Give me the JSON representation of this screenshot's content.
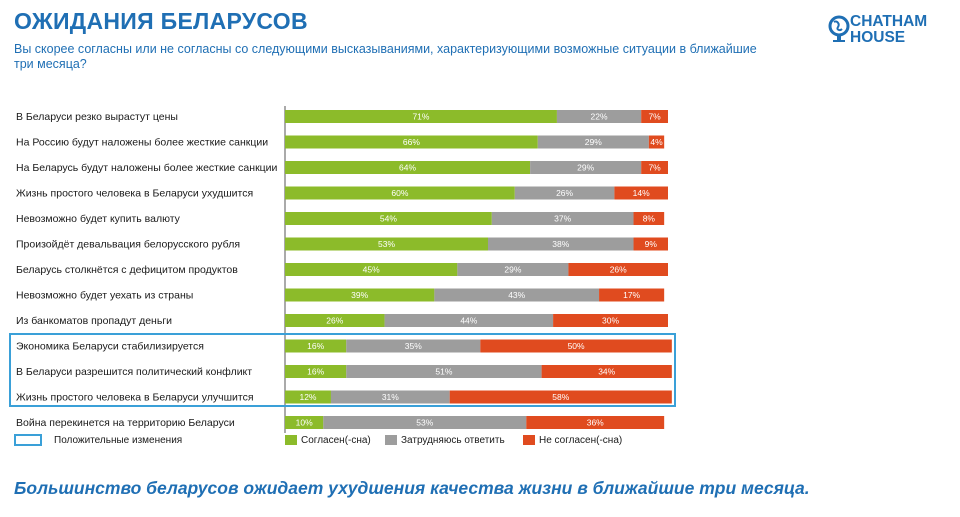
{
  "header": {
    "title": "ОЖИДАНИЯ БЕЛАРУСОВ",
    "subtitle": "Вы скорее согласны или не согласны со следующими высказываниями, характеризующими возможные ситуации в ближайшие три месяца?"
  },
  "logo": {
    "line1": "CHATHAM",
    "line2": "HOUSE"
  },
  "colors": {
    "agree": "#8cbb2a",
    "unsure": "#9d9d9d",
    "disagree": "#e04b1f",
    "accent": "#1f6fb4",
    "highlight": "#3aa0d8"
  },
  "legend": {
    "highlight_label": "Положительные изменения",
    "agree": "Согласен(-сна)",
    "unsure": "Затрудняюсь ответить",
    "disagree": "Не согласен(-сна)"
  },
  "chart_data": {
    "type": "bar",
    "orientation": "horizontal-stacked-100",
    "categories": [
      "В Беларуси резко вырастут цены",
      "На Россию будут наложены более жесткие санкции",
      "На Беларусь будут наложены более жесткие санкции",
      "Жизнь простого человека в Беларуси ухудшится",
      "Невозможно будет купить валюту",
      "Произойдёт девальвация белорусского рубля",
      "Беларусь столкнётся с дефицитом продуктов",
      "Невозможно будет уехать из страны",
      "Из банкоматов пропадут деньги",
      "Экономика Беларуси стабилизируется",
      "В Беларуси разрешится политический конфликт",
      "Жизнь простого человека в Беларуси улучшится",
      "Война перекинется на территорию Беларуси"
    ],
    "series": [
      {
        "name": "Согласен(-сна)",
        "values": [
          71,
          66,
          64,
          60,
          54,
          53,
          45,
          39,
          26,
          16,
          16,
          12,
          10
        ]
      },
      {
        "name": "Затрудняюсь ответить",
        "values": [
          22,
          29,
          29,
          26,
          37,
          38,
          29,
          43,
          44,
          35,
          51,
          31,
          53
        ]
      },
      {
        "name": "Не согласен(-сна)",
        "values": [
          7,
          4,
          7,
          14,
          8,
          9,
          26,
          17,
          30,
          50,
          34,
          58,
          36
        ]
      }
    ],
    "unit": "%",
    "xlim": [
      0,
      100
    ],
    "highlighted_categories": [
      "Экономика Беларуси стабилизируется",
      "В Беларуси разрешится политический конфликт",
      "Жизнь простого человека в Беларуси улучшится"
    ]
  },
  "footer": "Большинство беларусов ожидает ухудшения качества жизни в ближайшие три месяца."
}
